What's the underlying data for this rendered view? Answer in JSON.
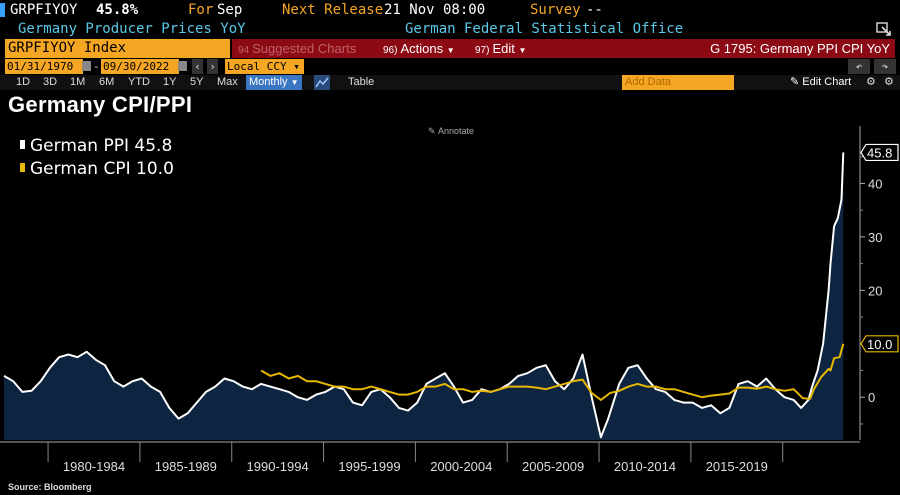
{
  "header": {
    "ticker": "GRPFIYOY",
    "value": "45.8%",
    "for_label": "For",
    "for_value": "Sep",
    "next_release_label": "Next Release",
    "next_release_value": "21 Nov 08:00",
    "survey_label": "Survey",
    "survey_value": "--",
    "description": "Germany Producer Prices YoY",
    "source": "German Federal Statistical Office"
  },
  "toolbar": {
    "security": "GRPFIYOY Index",
    "suggested_num": "94",
    "suggested": "Suggested Charts",
    "actions_num": "96)",
    "actions": "Actions",
    "edit_num": "97)",
    "edit": "Edit",
    "graph_title": "G 1795: Germany PPI CPI YoY"
  },
  "range": {
    "start": "01/31/1970",
    "end": "09/30/2022",
    "currency": "Local CCY"
  },
  "period_tabs": [
    "1D",
    "3D",
    "1M",
    "6M",
    "YTD",
    "1Y",
    "5Y",
    "Max"
  ],
  "frequency": "Monthly",
  "table_label": "Table",
  "add_data_placeholder": "Add Data",
  "edit_chart_label": "Edit Chart",
  "annotate_label": "Annotate",
  "source_note": "Source: Bloomberg",
  "colors": {
    "ppi": "#ffffff",
    "cpi": "#e6b800",
    "area": "#0d2540",
    "accent": "#f5a623",
    "bar_red": "#8b0a14"
  },
  "chart_data": {
    "type": "line",
    "title": "Germany CPI/PPI",
    "xlabel": "",
    "ylabel": "",
    "ylim": [
      -8,
      50
    ],
    "yticks": [
      0,
      10,
      20,
      30,
      40
    ],
    "x_period_labels": [
      "1980-1984",
      "1985-1989",
      "1990-1994",
      "1995-1999",
      "2000-2004",
      "2005-2009",
      "2010-2014",
      "2015-2019"
    ],
    "grid": false,
    "legend_position": "top-left",
    "series": [
      {
        "name": "German PPI",
        "last_value": "45.8",
        "color": "#ffffff",
        "fill": true,
        "points": [
          [
            1977.0,
            4.0
          ],
          [
            1977.5,
            3.0
          ],
          [
            1978.0,
            1.0
          ],
          [
            1978.5,
            1.2
          ],
          [
            1979.0,
            3.0
          ],
          [
            1979.5,
            5.5
          ],
          [
            1980.0,
            7.5
          ],
          [
            1980.5,
            8.0
          ],
          [
            1981.0,
            7.5
          ],
          [
            1981.5,
            8.5
          ],
          [
            1982.0,
            7.0
          ],
          [
            1982.5,
            6.0
          ],
          [
            1983.0,
            3.0
          ],
          [
            1983.5,
            2.0
          ],
          [
            1984.0,
            3.0
          ],
          [
            1984.5,
            3.5
          ],
          [
            1985.0,
            2.0
          ],
          [
            1985.5,
            1.0
          ],
          [
            1986.0,
            -2.0
          ],
          [
            1986.5,
            -4.0
          ],
          [
            1987.0,
            -3.0
          ],
          [
            1987.5,
            -1.0
          ],
          [
            1988.0,
            1.0
          ],
          [
            1988.5,
            2.0
          ],
          [
            1989.0,
            3.5
          ],
          [
            1989.5,
            3.0
          ],
          [
            1990.0,
            2.0
          ],
          [
            1990.5,
            1.5
          ],
          [
            1991.0,
            2.5
          ],
          [
            1991.5,
            2.0
          ],
          [
            1992.0,
            1.5
          ],
          [
            1992.5,
            1.0
          ],
          [
            1993.0,
            0.0
          ],
          [
            1993.5,
            -0.5
          ],
          [
            1994.0,
            0.5
          ],
          [
            1994.5,
            1.0
          ],
          [
            1995.0,
            2.0
          ],
          [
            1995.5,
            1.5
          ],
          [
            1996.0,
            -1.0
          ],
          [
            1996.5,
            -1.5
          ],
          [
            1997.0,
            1.0
          ],
          [
            1997.5,
            1.5
          ],
          [
            1998.0,
            0.0
          ],
          [
            1998.5,
            -2.0
          ],
          [
            1999.0,
            -2.5
          ],
          [
            1999.5,
            -1.0
          ],
          [
            2000.0,
            2.5
          ],
          [
            2000.5,
            3.5
          ],
          [
            2001.0,
            4.5
          ],
          [
            2001.5,
            2.0
          ],
          [
            2002.0,
            -1.0
          ],
          [
            2002.5,
            -0.5
          ],
          [
            2003.0,
            1.5
          ],
          [
            2003.5,
            1.0
          ],
          [
            2004.0,
            1.5
          ],
          [
            2004.5,
            2.5
          ],
          [
            2005.0,
            4.0
          ],
          [
            2005.5,
            4.5
          ],
          [
            2006.0,
            5.5
          ],
          [
            2006.5,
            6.0
          ],
          [
            2007.0,
            3.0
          ],
          [
            2007.5,
            1.5
          ],
          [
            2008.0,
            3.5
          ],
          [
            2008.5,
            8.0
          ],
          [
            2009.0,
            0.0
          ],
          [
            2009.5,
            -7.5
          ],
          [
            2009.9,
            -4.0
          ],
          [
            2010.5,
            2.5
          ],
          [
            2011.0,
            5.5
          ],
          [
            2011.5,
            6.0
          ],
          [
            2012.0,
            3.5
          ],
          [
            2012.5,
            1.5
          ],
          [
            2013.0,
            1.0
          ],
          [
            2013.5,
            -0.5
          ],
          [
            2014.0,
            -1.0
          ],
          [
            2014.5,
            -1.0
          ],
          [
            2015.0,
            -2.0
          ],
          [
            2015.5,
            -1.5
          ],
          [
            2016.0,
            -3.0
          ],
          [
            2016.5,
            -2.0
          ],
          [
            2017.0,
            2.5
          ],
          [
            2017.5,
            3.0
          ],
          [
            2018.0,
            2.0
          ],
          [
            2018.5,
            3.5
          ],
          [
            2019.0,
            1.5
          ],
          [
            2019.5,
            0.0
          ],
          [
            2020.0,
            -0.5
          ],
          [
            2020.4,
            -2.0
          ],
          [
            2020.8,
            -0.5
          ],
          [
            2021.0,
            2.0
          ],
          [
            2021.3,
            5.0
          ],
          [
            2021.6,
            10.0
          ],
          [
            2021.9,
            20.0
          ],
          [
            2022.0,
            25.0
          ],
          [
            2022.2,
            32.0
          ],
          [
            2022.4,
            33.5
          ],
          [
            2022.6,
            37.0
          ],
          [
            2022.7,
            45.8
          ]
        ]
      },
      {
        "name": "German CPI",
        "last_value": "10.0",
        "color": "#e6b800",
        "fill": false,
        "points": [
          [
            1991.0,
            5.0
          ],
          [
            1991.5,
            4.0
          ],
          [
            1992.0,
            4.5
          ],
          [
            1992.5,
            3.5
          ],
          [
            1993.0,
            4.0
          ],
          [
            1993.5,
            3.0
          ],
          [
            1994.0,
            3.0
          ],
          [
            1994.5,
            2.5
          ],
          [
            1995.0,
            2.0
          ],
          [
            1995.5,
            2.0
          ],
          [
            1996.0,
            1.5
          ],
          [
            1996.5,
            1.5
          ],
          [
            1997.0,
            2.0
          ],
          [
            1997.5,
            1.5
          ],
          [
            1998.0,
            1.0
          ],
          [
            1998.5,
            0.5
          ],
          [
            1999.0,
            0.5
          ],
          [
            1999.5,
            1.0
          ],
          [
            2000.0,
            2.0
          ],
          [
            2000.5,
            2.0
          ],
          [
            2001.0,
            2.5
          ],
          [
            2001.5,
            1.5
          ],
          [
            2002.0,
            1.5
          ],
          [
            2002.5,
            1.0
          ],
          [
            2003.0,
            1.2
          ],
          [
            2003.5,
            1.0
          ],
          [
            2004.0,
            1.5
          ],
          [
            2004.5,
            2.0
          ],
          [
            2005.0,
            2.0
          ],
          [
            2005.5,
            2.0
          ],
          [
            2006.0,
            1.8
          ],
          [
            2006.5,
            1.5
          ],
          [
            2007.0,
            2.0
          ],
          [
            2007.5,
            2.5
          ],
          [
            2008.0,
            3.0
          ],
          [
            2008.5,
            3.3
          ],
          [
            2009.0,
            0.8
          ],
          [
            2009.5,
            -0.5
          ],
          [
            2010.0,
            0.8
          ],
          [
            2010.5,
            1.2
          ],
          [
            2011.0,
            2.0
          ],
          [
            2011.5,
            2.5
          ],
          [
            2012.0,
            2.0
          ],
          [
            2012.5,
            2.0
          ],
          [
            2013.0,
            1.5
          ],
          [
            2013.5,
            1.5
          ],
          [
            2014.0,
            1.0
          ],
          [
            2014.5,
            0.5
          ],
          [
            2015.0,
            0.0
          ],
          [
            2015.5,
            0.3
          ],
          [
            2016.0,
            0.5
          ],
          [
            2016.5,
            0.7
          ],
          [
            2017.0,
            1.8
          ],
          [
            2017.5,
            1.8
          ],
          [
            2018.0,
            1.6
          ],
          [
            2018.5,
            2.0
          ],
          [
            2019.0,
            1.5
          ],
          [
            2019.5,
            1.2
          ],
          [
            2020.0,
            1.5
          ],
          [
            2020.5,
            -0.2
          ],
          [
            2020.9,
            -0.3
          ],
          [
            2021.1,
            1.5
          ],
          [
            2021.5,
            3.8
          ],
          [
            2021.9,
            5.3
          ],
          [
            2022.0,
            5.0
          ],
          [
            2022.2,
            7.3
          ],
          [
            2022.5,
            7.5
          ],
          [
            2022.7,
            10.0
          ]
        ]
      }
    ]
  }
}
